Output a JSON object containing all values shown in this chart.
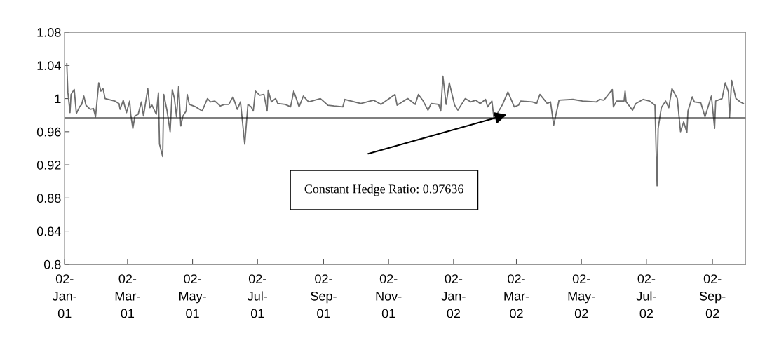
{
  "chart_data": {
    "type": "line",
    "x": [
      "2001-01-04",
      "2001-01-05",
      "2001-01-07",
      "2001-01-08",
      "2001-01-11",
      "2001-01-13",
      "2001-01-16",
      "2001-01-18",
      "2001-01-20",
      "2001-01-22",
      "2001-01-26",
      "2001-01-29",
      "2001-01-31",
      "2001-02-03",
      "2001-02-05",
      "2001-02-07",
      "2001-02-09",
      "2001-02-18",
      "2001-02-22",
      "2001-02-23",
      "2001-02-26",
      "2001-03-01",
      "2001-03-04",
      "2001-03-05",
      "2001-03-07",
      "2001-03-09",
      "2001-03-12",
      "2001-03-15",
      "2001-03-17",
      "2001-03-21",
      "2001-03-23",
      "2001-03-25",
      "2001-03-29",
      "2001-03-31",
      "2001-04-01",
      "2001-04-04",
      "2001-04-05",
      "2001-04-08",
      "2001-04-11",
      "2001-04-13",
      "2001-04-15",
      "2001-04-17",
      "2001-04-19",
      "2001-04-21",
      "2001-04-23",
      "2001-04-26",
      "2001-04-27",
      "2001-04-29",
      "2001-05-05",
      "2001-05-11",
      "2001-05-16",
      "2001-05-19",
      "2001-05-23",
      "2001-05-28",
      "2001-06-01",
      "2001-06-05",
      "2001-06-09",
      "2001-06-13",
      "2001-06-16",
      "2001-06-20",
      "2001-06-23",
      "2001-06-26",
      "2001-06-28",
      "2001-06-30",
      "2001-07-04",
      "2001-07-08",
      "2001-07-11",
      "2001-07-12",
      "2001-07-15",
      "2001-07-19",
      "2001-07-21",
      "2001-07-28",
      "2001-08-02",
      "2001-08-05",
      "2001-08-10",
      "2001-08-14",
      "2001-08-19",
      "2001-08-30",
      "2001-09-06",
      "2001-09-12",
      "2001-09-20",
      "2001-09-22",
      "2001-10-07",
      "2001-10-19",
      "2001-10-26",
      "2001-11-08",
      "2001-11-10",
      "2001-11-20",
      "2001-11-27",
      "2001-11-30",
      "2001-12-04",
      "2001-12-09",
      "2001-12-12",
      "2001-12-19",
      "2001-12-21",
      "2001-12-23",
      "2001-12-26",
      "2001-12-29",
      "2002-01-03",
      "2002-01-06",
      "2002-01-13",
      "2002-01-18",
      "2002-01-23",
      "2002-01-27",
      "2002-02-01",
      "2002-02-03",
      "2002-02-07",
      "2002-02-09",
      "2002-02-17",
      "2002-02-22",
      "2002-02-28",
      "2002-03-04",
      "2002-03-06",
      "2002-03-17",
      "2002-03-21",
      "2002-03-24",
      "2002-03-31",
      "2002-04-03",
      "2002-04-06",
      "2002-04-11",
      "2002-04-24",
      "2002-05-03",
      "2002-05-16",
      "2002-05-19",
      "2002-05-23",
      "2002-05-31",
      "2002-06-01",
      "2002-06-04",
      "2002-06-11",
      "2002-06-12",
      "2002-06-13",
      "2002-06-19",
      "2002-06-22",
      "2002-06-29",
      "2002-07-05",
      "2002-07-10",
      "2002-07-12",
      "2002-07-13",
      "2002-07-16",
      "2002-07-20",
      "2002-07-23",
      "2002-07-26",
      "2002-07-31",
      "2002-08-03",
      "2002-08-06",
      "2002-08-09",
      "2002-08-10",
      "2002-08-14",
      "2002-08-16",
      "2002-08-22",
      "2002-08-26",
      "2002-09-01",
      "2002-09-04",
      "2002-09-05",
      "2002-09-11",
      "2002-09-14",
      "2002-09-17",
      "2002-09-18",
      "2002-09-20",
      "2002-09-24",
      "2002-09-28",
      "2002-10-01"
    ],
    "series": [
      {
        "color": "#6e6e6e",
        "values": [
          1.042,
          1.008,
          0.983,
          1.005,
          1.011,
          0.982,
          0.99,
          0.993,
          1.003,
          0.992,
          0.987,
          0.988,
          0.978,
          1.019,
          1.009,
          1.012,
          1.0,
          0.997,
          0.994,
          0.987,
          0.998,
          0.983,
          0.997,
          0.981,
          0.964,
          0.979,
          0.981,
          0.996,
          0.979,
          1.012,
          0.989,
          0.992,
          0.981,
          1.007,
          0.945,
          0.93,
          1.005,
          0.986,
          0.96,
          1.011,
          1.0,
          0.978,
          1.015,
          0.967,
          0.979,
          0.985,
          1.005,
          0.993,
          0.99,
          0.985,
          1.0,
          0.996,
          0.997,
          0.991,
          0.993,
          0.993,
          1.002,
          0.987,
          0.996,
          0.945,
          0.993,
          0.99,
          0.985,
          1.009,
          1.004,
          1.005,
          0.985,
          1.01,
          0.996,
          1.0,
          0.994,
          0.993,
          0.99,
          1.009,
          0.99,
          1.003,
          0.996,
          1.0,
          0.992,
          0.991,
          0.99,
          0.999,
          0.994,
          0.998,
          0.993,
          1.005,
          0.992,
          1.0,
          0.993,
          1.005,
          0.998,
          0.986,
          0.994,
          0.993,
          0.985,
          1.027,
          0.993,
          1.019,
          0.992,
          0.986,
          1.0,
          0.996,
          0.998,
          0.994,
          0.999,
          0.99,
          0.997,
          0.975,
          0.993,
          1.008,
          0.99,
          0.992,
          0.997,
          0.996,
          0.994,
          1.005,
          0.994,
          0.996,
          0.968,
          0.998,
          0.999,
          0.997,
          0.996,
          0.999,
          0.998,
          1.011,
          0.99,
          0.997,
          0.997,
          1.009,
          0.996,
          0.986,
          0.994,
          0.999,
          0.997,
          0.992,
          0.895,
          0.964,
          0.989,
          0.997,
          0.989,
          1.012,
          1.0,
          0.96,
          0.972,
          0.959,
          0.985,
          1.002,
          0.996,
          0.995,
          0.978,
          1.003,
          0.964,
          0.997,
          1.0,
          1.019,
          1.008,
          0.977,
          1.022,
          1.0,
          0.996,
          0.994
        ]
      }
    ],
    "xlim": [
      "2001-01-02",
      "2002-10-03"
    ],
    "xticks": [
      {
        "value": "2001-01-02",
        "label": "02-\nJan-\n01"
      },
      {
        "value": "2001-03-02",
        "label": "02-\nMar-\n01"
      },
      {
        "value": "2001-05-02",
        "label": "02-\nMay-\n01"
      },
      {
        "value": "2001-07-02",
        "label": "02-\nJul-\n01"
      },
      {
        "value": "2001-09-02",
        "label": "02-\nSep-\n01"
      },
      {
        "value": "2001-11-02",
        "label": "02-\nNov-\n01"
      },
      {
        "value": "2002-01-02",
        "label": "02-\nJan-\n02"
      },
      {
        "value": "2002-03-02",
        "label": "02-\nMar-\n02"
      },
      {
        "value": "2002-05-02",
        "label": "02-\nMay-\n02"
      },
      {
        "value": "2002-07-02",
        "label": "02-\nJul-\n02"
      },
      {
        "value": "2002-09-02",
        "label": "02-\nSep-\n02"
      }
    ],
    "ylim": [
      0.8,
      1.08
    ],
    "yticks": [
      0.8,
      0.84,
      0.88,
      0.92,
      0.96,
      1,
      1.04,
      1.08
    ],
    "ref_lines": [
      {
        "axis": "y",
        "value": 0.97636,
        "color": "#000000"
      }
    ],
    "annotations": [
      "Constant Hedge Ratio: 0.97636"
    ],
    "grid": false,
    "legend": false,
    "marker": "none",
    "line_style": "solid"
  }
}
